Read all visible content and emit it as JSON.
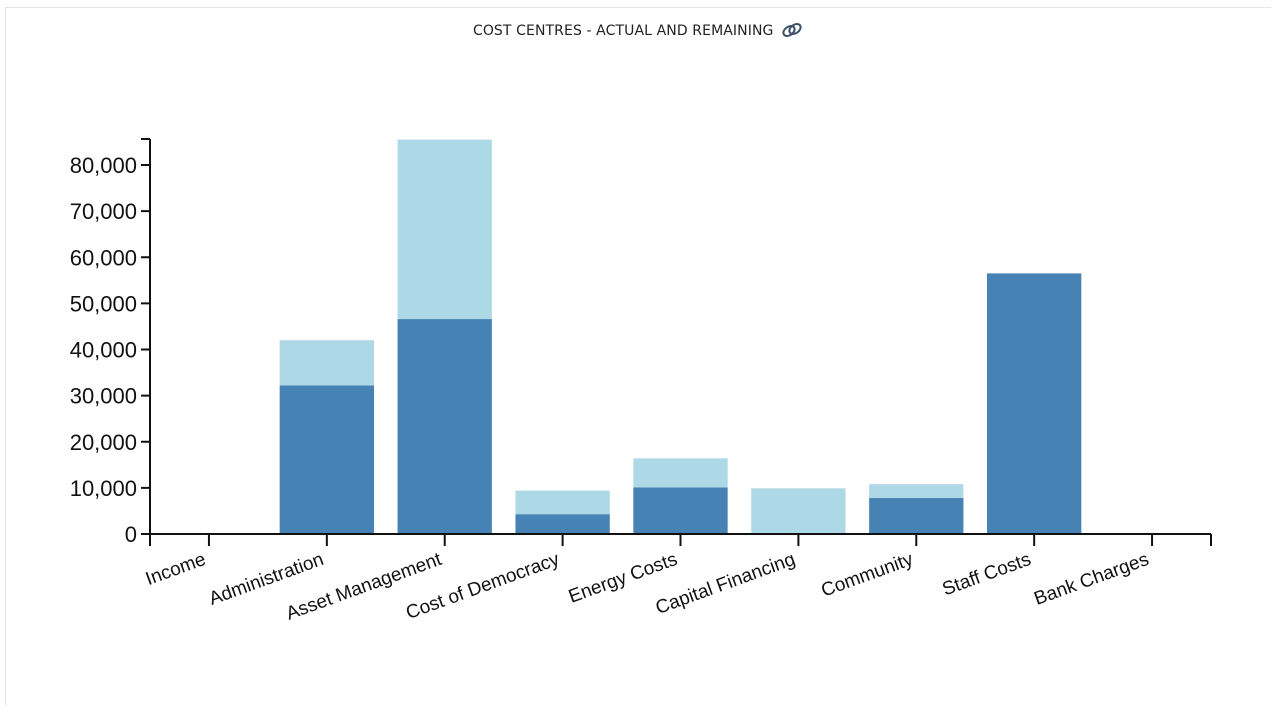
{
  "chart_title": "COST CENTRES - ACTUAL AND REMAINING",
  "title_icon": "link-icon",
  "colors": {
    "actual": "#4682b4",
    "remaining": "#add8e6",
    "axis": "#111111"
  },
  "chart_data": {
    "type": "bar",
    "stacked": true,
    "title": "COST CENTRES - ACTUAL AND REMAINING",
    "categories": [
      "Income",
      "Administration",
      "Asset Management",
      "Cost of Democracy",
      "Energy Costs",
      "Capital Financing",
      "Community",
      "Staff Costs",
      "Bank Charges"
    ],
    "series": [
      {
        "values": [
          0,
          32200,
          46600,
          4300,
          10100,
          0,
          7800,
          56500,
          0
        ],
        "color": "#4682b4"
      },
      {
        "values": [
          0,
          9800,
          38900,
          5100,
          6300,
          9900,
          3000,
          0,
          0
        ],
        "color": "#add8e6"
      }
    ],
    "ylim": [
      0,
      85000
    ],
    "yticks": [
      0,
      10000,
      20000,
      30000,
      40000,
      50000,
      60000,
      70000,
      80000
    ],
    "ytick_labels": [
      "0",
      "10,000",
      "20,000",
      "30,000",
      "40,000",
      "50,000",
      "60,000",
      "70,000",
      "80,000"
    ],
    "xlabel": "",
    "ylabel": "",
    "grid": false,
    "legend": "none"
  }
}
